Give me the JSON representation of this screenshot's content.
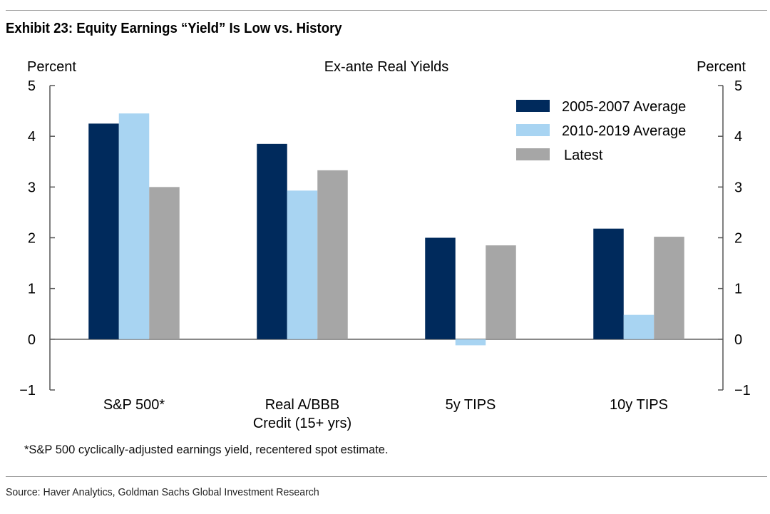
{
  "exhibit_title": "Exhibit 23: Equity Earnings “Yield” Is Low vs. History",
  "footnote": "*S&P 500 cyclically-adjusted earnings yield, recentered spot estimate.",
  "source": "Source: Haver Analytics, Goldman Sachs Global Investment Research",
  "colors": {
    "series_0": "#002a5c",
    "series_1": "#a8d4f2",
    "series_2": "#a6a6a6",
    "axis": "#555555"
  },
  "chart_data": {
    "type": "bar",
    "title": "Ex-ante Real Yields",
    "ylabel_left": "Percent",
    "ylabel_right": "Percent",
    "ylim": [
      -1,
      5
    ],
    "yticks": [
      5,
      4,
      3,
      2,
      1,
      0,
      -1
    ],
    "ytick_labels": [
      "5",
      "4",
      "3",
      "2",
      "1",
      "0",
      "−1"
    ],
    "categories": [
      [
        "S&P 500*"
      ],
      [
        "Real A/BBB",
        "Credit (15+ yrs)"
      ],
      [
        "5y TIPS"
      ],
      [
        "10y TIPS"
      ]
    ],
    "series": [
      {
        "name": "2005-2007 Average",
        "values": [
          4.25,
          3.85,
          2.0,
          2.18
        ]
      },
      {
        "name": "2010-2019 Average",
        "values": [
          4.45,
          2.93,
          -0.12,
          0.48
        ]
      },
      {
        "name": "Latest",
        "values": [
          3.0,
          3.33,
          1.85,
          2.02
        ]
      }
    ],
    "legend_position": "top-right",
    "grid": false
  }
}
